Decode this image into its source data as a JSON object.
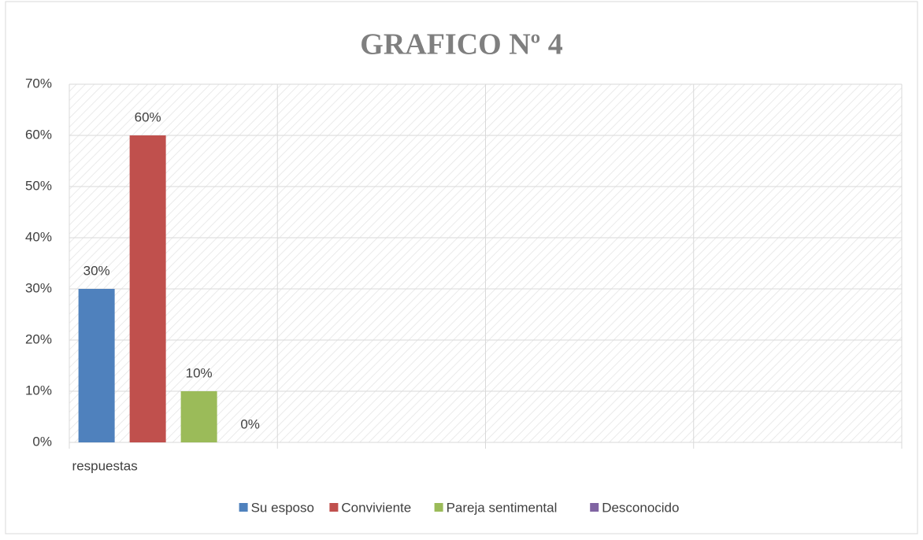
{
  "chart_data": {
    "type": "bar",
    "title": "GRAFICO Nº 4",
    "categories": [
      "respuestas",
      null,
      null,
      null
    ],
    "series": [
      {
        "name": "Su esposo",
        "color": "#4f81bd",
        "values": [
          30,
          null,
          null,
          null
        ],
        "value_labels": [
          "30%",
          null,
          null,
          null
        ]
      },
      {
        "name": "Conviviente",
        "color": "#c0504d",
        "values": [
          60,
          null,
          null,
          null
        ],
        "value_labels": [
          "60%",
          null,
          null,
          null
        ]
      },
      {
        "name": "Pareja sentimental",
        "color": "#9bbb59",
        "values": [
          10,
          null,
          null,
          null
        ],
        "value_labels": [
          "10%",
          null,
          null,
          null
        ]
      },
      {
        "name": "Desconocido",
        "color": "#8064a2",
        "values": [
          0,
          null,
          null,
          null
        ],
        "value_labels": [
          "0%",
          null,
          null,
          null
        ]
      }
    ],
    "ylim": [
      0,
      70
    ],
    "yticks": [
      {
        "value": 0,
        "label": "0%"
      },
      {
        "value": 10,
        "label": "10%"
      },
      {
        "value": 20,
        "label": "20%"
      },
      {
        "value": 30,
        "label": "30%"
      },
      {
        "value": 40,
        "label": "40%"
      },
      {
        "value": 50,
        "label": "50%"
      },
      {
        "value": 60,
        "label": "60%"
      },
      {
        "value": 70,
        "label": "70%"
      }
    ],
    "grid": true,
    "legend": "bottom"
  }
}
